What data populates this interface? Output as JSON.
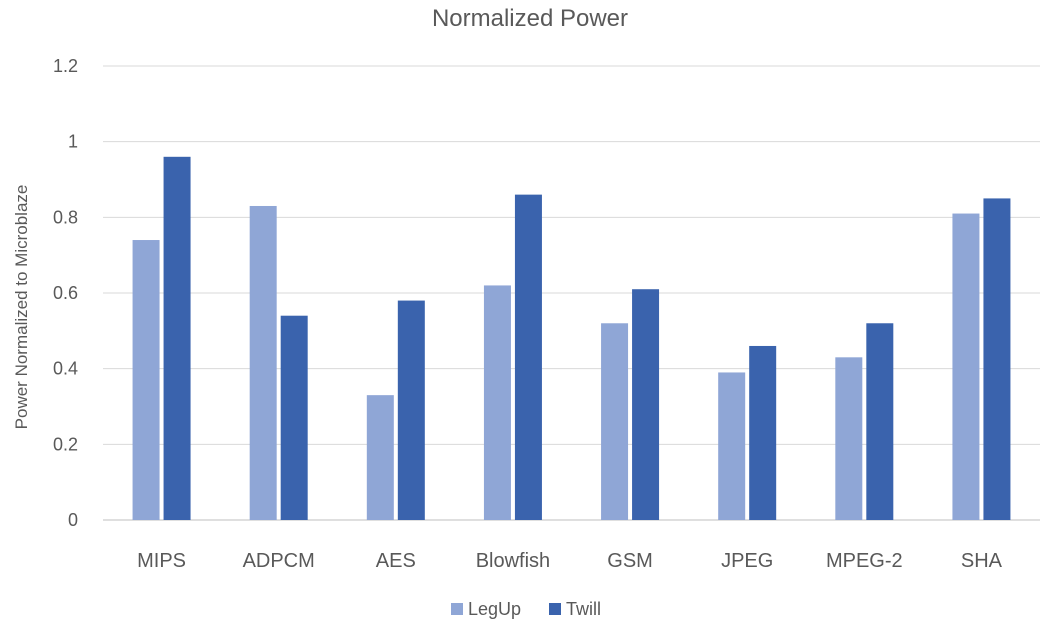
{
  "chart_data": {
    "type": "bar",
    "title": "Normalized Power",
    "xlabel": "",
    "ylabel": "Power Normalized to Microblaze",
    "categories": [
      "MIPS",
      "ADPCM",
      "AES",
      "Blowfish",
      "GSM",
      "JPEG",
      "MPEG-2",
      "SHA"
    ],
    "series": [
      {
        "name": "LegUp",
        "color": "#8fa6d6",
        "values": [
          0.74,
          0.83,
          0.33,
          0.62,
          0.52,
          0.39,
          0.43,
          0.81
        ]
      },
      {
        "name": "Twill",
        "color": "#3a63ad",
        "values": [
          0.96,
          0.54,
          0.58,
          0.86,
          0.61,
          0.46,
          0.52,
          0.85
        ]
      }
    ],
    "ylim": [
      0,
      1.2
    ],
    "yticks": [
      "0",
      "0.2",
      "0.4",
      "0.6",
      "0.8",
      "1",
      "1.2"
    ],
    "grid": true,
    "legend_position": "bottom"
  }
}
